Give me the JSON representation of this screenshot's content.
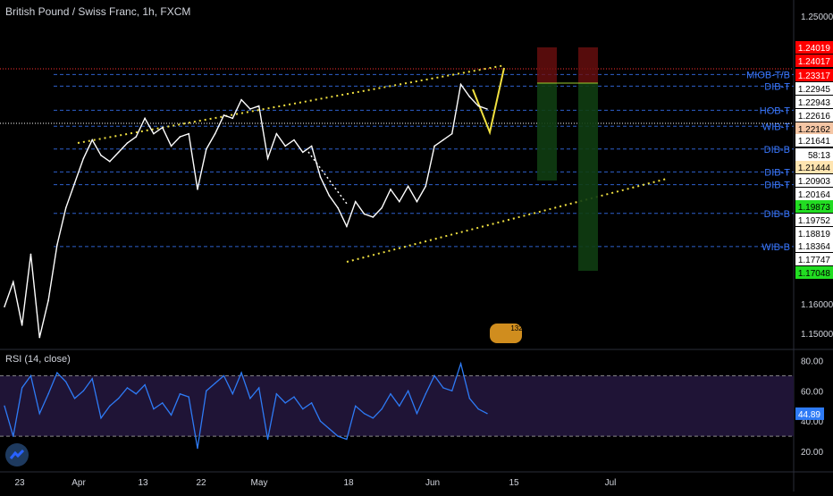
{
  "title": "British Pound / Swiss Franc, 1h, FXCM",
  "chart_data": [
    {
      "type": "line",
      "title": "British Pound / Swiss Franc, 1h, FXCM",
      "ylim": [
        1.145,
        1.255
      ],
      "y_ticks": [
        "1.25000",
        "1.16000",
        "1.15000"
      ],
      "x_ticks": [
        "23",
        "Apr",
        "13",
        "22",
        "May",
        "18",
        "Jun",
        "15",
        "Jul"
      ],
      "grid": false,
      "series": [
        {
          "color": "#ffffff",
          "x": [
            0,
            10,
            20,
            30,
            40,
            50,
            60,
            70,
            80,
            90,
            100,
            110,
            120,
            130,
            140,
            150,
            160,
            170,
            180,
            190,
            200,
            210,
            220,
            230,
            240,
            250,
            260,
            270,
            280,
            290,
            300,
            310,
            320,
            330,
            340,
            350,
            360,
            370,
            380,
            390,
            400,
            410,
            420,
            430,
            440,
            450,
            460,
            470,
            480,
            490,
            500,
            510,
            520,
            530,
            540,
            550
          ],
          "values": [
            1.158,
            1.166,
            1.152,
            1.175,
            1.148,
            1.16,
            1.178,
            1.19,
            1.198,
            1.206,
            1.212,
            1.207,
            1.205,
            1.208,
            1.211,
            1.213,
            1.219,
            1.214,
            1.216,
            1.21,
            1.213,
            1.214,
            1.196,
            1.209,
            1.214,
            1.22,
            1.219,
            1.225,
            1.222,
            1.223,
            1.206,
            1.214,
            1.21,
            1.212,
            1.208,
            1.21,
            1.2,
            1.194,
            1.19,
            1.184,
            1.192,
            1.188,
            1.187,
            1.19,
            1.196,
            1.192,
            1.197,
            1.192,
            1.197,
            1.21,
            1.212,
            1.214,
            1.23,
            1.226,
            1.223,
            1.222
          ]
        }
      ],
      "levels": [
        {
          "label": "MIOB-T/B",
          "value": 1.23317,
          "color": "#3a78ff"
        },
        {
          "label": "DIB-T",
          "value": 1.22943,
          "color": "#3a78ff"
        },
        {
          "label": "HOB-T",
          "value": 1.22162,
          "color": "#3a78ff"
        },
        {
          "label": "WIB-T",
          "value": 1.21641,
          "color": "#3a78ff"
        },
        {
          "label": "DIB-B",
          "value": 1.20903,
          "color": "#3a78ff"
        },
        {
          "label": "DIB-T",
          "value": 1.20164,
          "color": "#3a78ff"
        },
        {
          "label": "DIB-T",
          "value": 1.19752,
          "color": "#3a78ff"
        },
        {
          "label": "DIB-B",
          "value": 1.18819,
          "color": "#3a78ff"
        },
        {
          "label": "WIB-B",
          "value": 1.17747,
          "color": "#3a78ff"
        }
      ],
      "price_tags": [
        {
          "value": "1.24019",
          "bg": "#ff0000",
          "fg": "#ffffff"
        },
        {
          "value": "1.24017",
          "bg": "#ff0000",
          "fg": "#ffffff"
        },
        {
          "value": "1.23317",
          "bg": "#ff0000",
          "fg": "#ffffff"
        },
        {
          "value": "1.22945",
          "bg": "#ffffff",
          "fg": "#000000"
        },
        {
          "value": "1.22943",
          "bg": "#ffffff",
          "fg": "#000000"
        },
        {
          "value": "1.22616",
          "bg": "#ffffff",
          "fg": "#000000"
        },
        {
          "value": "1.22162",
          "bg": "#f5c6a5",
          "fg": "#000000"
        },
        {
          "value": "1.21641",
          "bg": "#ffffff",
          "fg": "#000000"
        },
        {
          "value": "58:13",
          "bg": "#ffffff",
          "fg": "#000000"
        },
        {
          "value": "1.21444",
          "bg": "#ffe4b0",
          "fg": "#000000"
        },
        {
          "value": "1.20903",
          "bg": "#ffffff",
          "fg": "#000000"
        },
        {
          "value": "1.20164",
          "bg": "#ffffff",
          "fg": "#000000"
        },
        {
          "value": "1.19873",
          "bg": "#22dd22",
          "fg": "#000000"
        },
        {
          "value": "1.19752",
          "bg": "#ffffff",
          "fg": "#000000"
        },
        {
          "value": "1.18819",
          "bg": "#ffffff",
          "fg": "#000000"
        },
        {
          "value": "1.18364",
          "bg": "#ffffff",
          "fg": "#000000"
        },
        {
          "value": "1.17747",
          "bg": "#ffffff",
          "fg": "#000000"
        },
        {
          "value": "1.17048",
          "bg": "#22dd22",
          "fg": "#000000"
        }
      ],
      "badge": "132"
    },
    {
      "type": "line",
      "title": "RSI (14, close)",
      "ylim": [
        10,
        85
      ],
      "y_ticks": [
        "80.00",
        "60.00",
        "40.00",
        "20.00"
      ],
      "bands": [
        70,
        30
      ],
      "last_value": "44.89",
      "series": [
        {
          "color": "#2e7bf6",
          "x": [
            0,
            10,
            20,
            30,
            40,
            50,
            60,
            70,
            80,
            90,
            100,
            110,
            120,
            130,
            140,
            150,
            160,
            170,
            180,
            190,
            200,
            210,
            220,
            230,
            240,
            250,
            260,
            270,
            280,
            290,
            300,
            310,
            320,
            330,
            340,
            350,
            360,
            370,
            380,
            390,
            400,
            410,
            420,
            430,
            440,
            450,
            460,
            470,
            480,
            490,
            500,
            510,
            520,
            530,
            540,
            550
          ],
          "values": [
            50,
            30,
            62,
            70,
            45,
            58,
            72,
            66,
            55,
            60,
            68,
            42,
            50,
            55,
            62,
            58,
            64,
            48,
            52,
            44,
            58,
            56,
            22,
            60,
            65,
            70,
            58,
            72,
            55,
            62,
            28,
            58,
            52,
            56,
            48,
            52,
            40,
            35,
            30,
            28,
            50,
            45,
            42,
            48,
            58,
            50,
            60,
            45,
            58,
            70,
            62,
            60,
            78,
            55,
            48,
            45
          ]
        }
      ]
    }
  ]
}
